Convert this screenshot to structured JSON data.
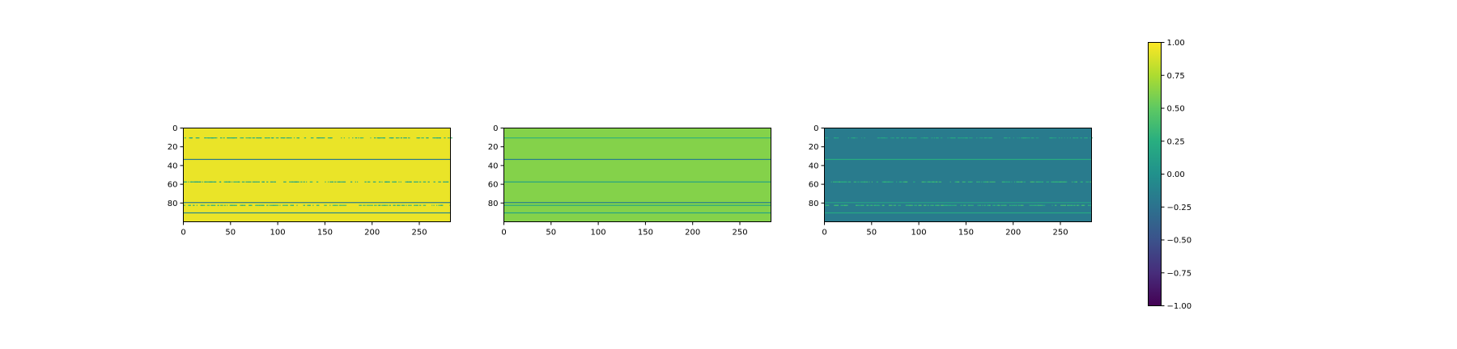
{
  "chart_data": [
    {
      "type": "heatmap",
      "panel": 1,
      "title": "",
      "xlabel": "",
      "ylabel": "",
      "xlim": [
        0,
        283
      ],
      "ylim": [
        0,
        100
      ],
      "y_inverted": true,
      "x_ticks": [
        0,
        50,
        100,
        150,
        200,
        250
      ],
      "y_ticks": [
        0,
        20,
        40,
        60,
        80
      ],
      "base_value": 0.94,
      "rows": [
        {
          "row": 10,
          "value": 0.28,
          "style": "speckled"
        },
        {
          "row": 33,
          "value": -0.2,
          "style": "solid"
        },
        {
          "row": 57,
          "value": 0.2,
          "style": "speckled"
        },
        {
          "row": 79,
          "value": -0.2,
          "style": "solid"
        },
        {
          "row": 82,
          "value": 0.3,
          "style": "speckled"
        },
        {
          "row": 90,
          "value": -0.1,
          "style": "solid"
        }
      ]
    },
    {
      "type": "heatmap",
      "panel": 2,
      "title": "",
      "xlabel": "",
      "ylabel": "",
      "xlim": [
        0,
        283
      ],
      "ylim": [
        0,
        100
      ],
      "y_inverted": true,
      "x_ticks": [
        0,
        50,
        100,
        150,
        200,
        250
      ],
      "y_ticks": [
        0,
        20,
        40,
        60,
        80
      ],
      "base_value": 0.62,
      "rows": [
        {
          "row": 10,
          "value": 0.3,
          "style": "solid"
        },
        {
          "row": 33,
          "value": -0.15,
          "style": "solid"
        },
        {
          "row": 57,
          "value": 0.15,
          "style": "solid"
        },
        {
          "row": 79,
          "value": -0.15,
          "style": "solid"
        },
        {
          "row": 82,
          "value": 0.2,
          "style": "solid"
        },
        {
          "row": 90,
          "value": 0.15,
          "style": "solid"
        }
      ]
    },
    {
      "type": "heatmap",
      "panel": 3,
      "title": "",
      "xlabel": "",
      "ylabel": "",
      "xlim": [
        0,
        283
      ],
      "ylim": [
        0,
        100
      ],
      "y_inverted": true,
      "x_ticks": [
        0,
        50,
        100,
        150,
        200,
        250
      ],
      "y_ticks": [
        0,
        20,
        40,
        60,
        80
      ],
      "base_value": -0.18,
      "rows": [
        {
          "row": 10,
          "value": 0.15,
          "style": "speckled"
        },
        {
          "row": 33,
          "value": 0.25,
          "style": "solid"
        },
        {
          "row": 57,
          "value": 0.3,
          "style": "speckled"
        },
        {
          "row": 79,
          "value": 0.15,
          "style": "solid"
        },
        {
          "row": 82,
          "value": 0.3,
          "style": "speckled"
        },
        {
          "row": 90,
          "value": 0.2,
          "style": "solid"
        }
      ]
    }
  ],
  "colorbar": {
    "colormap": "viridis",
    "range": [
      -1.0,
      1.0
    ],
    "ticks": [
      "1.00",
      "0.75",
      "0.50",
      "0.25",
      "0.00",
      "−0.25",
      "−0.50",
      "−0.75",
      "−1.00"
    ]
  }
}
